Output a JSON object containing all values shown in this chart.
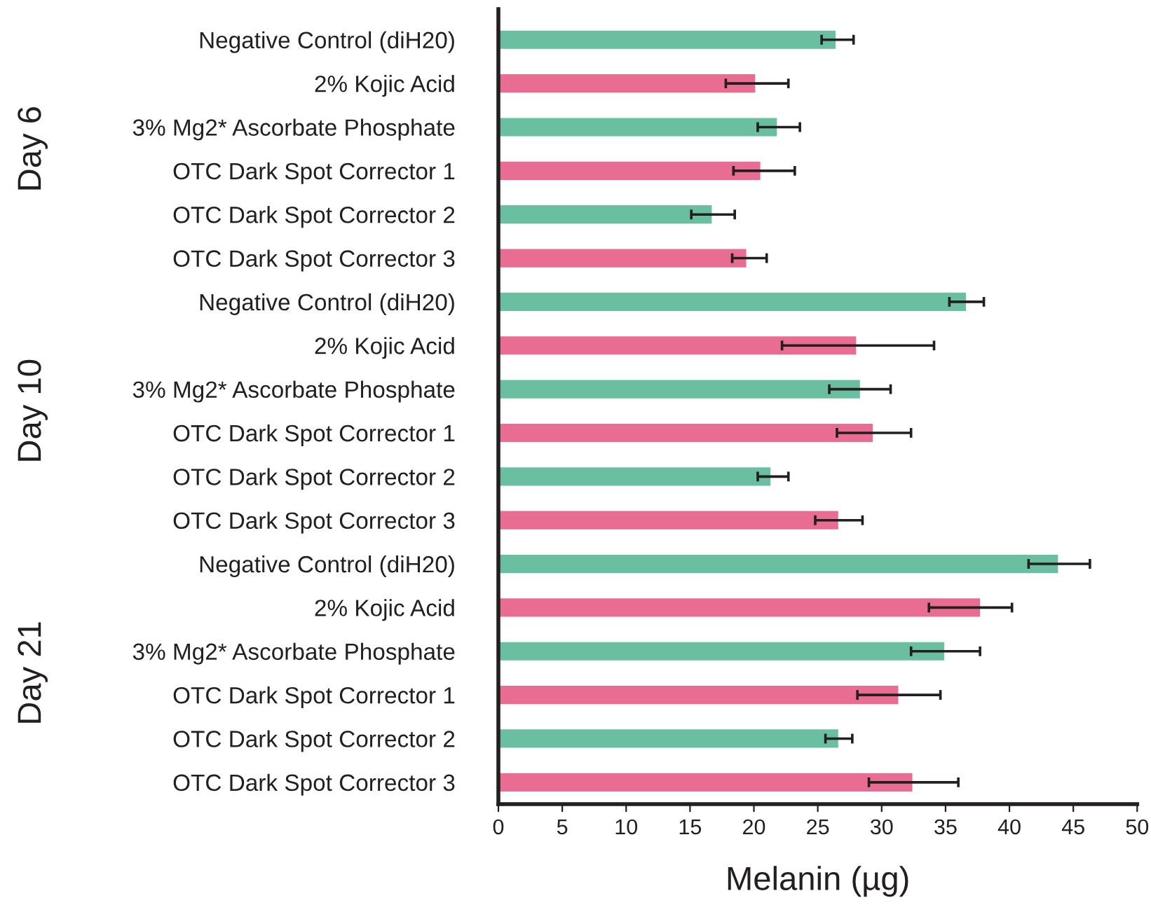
{
  "chart_data": {
    "type": "bar",
    "orientation": "horizontal",
    "xlabel": "Melanin (µg)",
    "categories": [
      "Negative Control (diH20)",
      "2% Kojic Acid",
      "3% Mg2* Ascorbate Phosphate",
      "OTC Dark Spot Corrector 1",
      "OTC Dark Spot Corrector 2",
      "OTC Dark Spot Corrector 3",
      "Negative Control (diH20)",
      "2% Kojic Acid",
      "3% Mg2* Ascorbate Phosphate",
      "OTC Dark Spot Corrector 1",
      "OTC Dark Spot Corrector 2",
      "OTC Dark Spot Corrector 3",
      "Negative Control (diH20)",
      "2% Kojic Acid",
      "3% Mg2* Ascorbate Phosphate",
      "OTC Dark Spot Corrector 1",
      "OTC Dark Spot Corrector 2",
      "OTC Dark Spot Corrector 3"
    ],
    "values": [
      26.4,
      20.1,
      21.8,
      20.5,
      16.7,
      19.4,
      36.6,
      28.0,
      28.3,
      29.3,
      21.3,
      26.6,
      43.8,
      37.7,
      34.9,
      31.3,
      26.6,
      32.4
    ],
    "errors": [
      [
        25.3,
        27.8
      ],
      [
        17.8,
        22.7
      ],
      [
        20.3,
        23.6
      ],
      [
        18.4,
        23.2
      ],
      [
        15.1,
        18.5
      ],
      [
        18.3,
        21.0
      ],
      [
        35.3,
        38.0
      ],
      [
        22.2,
        34.1
      ],
      [
        25.9,
        30.7
      ],
      [
        26.5,
        32.3
      ],
      [
        20.3,
        22.7
      ],
      [
        24.8,
        28.5
      ],
      [
        41.5,
        46.3
      ],
      [
        33.7,
        40.2
      ],
      [
        32.3,
        37.7
      ],
      [
        28.1,
        34.6
      ],
      [
        25.6,
        27.7
      ],
      [
        29.0,
        36.0
      ]
    ],
    "colors": [
      "#69bfa0",
      "#e96d93",
      "#69bfa0",
      "#e96d93",
      "#69bfa0",
      "#e96d93",
      "#69bfa0",
      "#e96d93",
      "#69bfa0",
      "#e96d93",
      "#69bfa0",
      "#e96d93",
      "#69bfa0",
      "#e96d93",
      "#69bfa0",
      "#e96d93",
      "#69bfa0",
      "#e96d93"
    ],
    "annotations": [
      "Day 6",
      "Day 10",
      "Day 21"
    ],
    "xlim": [
      0,
      50
    ],
    "xticks": [
      0,
      5,
      10,
      15,
      20,
      25,
      30,
      35,
      40,
      45,
      50
    ],
    "grid": false,
    "legend": false
  }
}
